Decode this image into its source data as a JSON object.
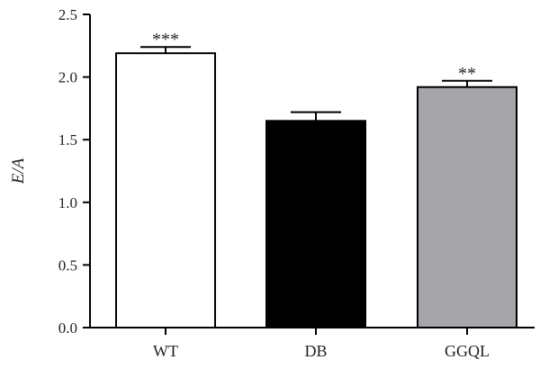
{
  "chart_data": {
    "type": "bar",
    "title": "",
    "xlabel": "",
    "ylabel": "E/A",
    "ylim": [
      0,
      2.5
    ],
    "yticks": [
      0.0,
      0.5,
      1.0,
      1.5,
      2.0,
      2.5
    ],
    "ytick_labels": [
      "0.0",
      "0.5",
      "1.0",
      "1.5",
      "2.0",
      "2.5"
    ],
    "grid": false,
    "categories": [
      "WT",
      "DB",
      "GGQL"
    ],
    "values": [
      2.19,
      1.65,
      1.92
    ],
    "errors": [
      0.05,
      0.07,
      0.05
    ],
    "colors": [
      "#ffffff",
      "#000000",
      "#a5a5aa"
    ],
    "edge_color": "#000000",
    "significance": [
      "***",
      "",
      "**"
    ]
  }
}
